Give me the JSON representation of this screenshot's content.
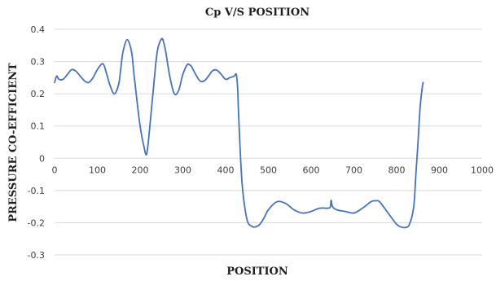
{
  "chart_data": {
    "type": "line",
    "title": "Cp V/S POSITION",
    "xlabel": "POSITION",
    "ylabel": "PRESSURE CO-EFFICIENT",
    "xlim": [
      0,
      1000
    ],
    "ylim": [
      -0.3,
      0.4
    ],
    "xticks": [
      "0",
      "100",
      "200",
      "300",
      "400",
      "500",
      "600",
      "700",
      "800",
      "900",
      "1000"
    ],
    "yticks": [
      "-0.3",
      "-0.2",
      "-0.1",
      "0",
      "0.1",
      "0.2",
      "0.3",
      "0.4"
    ],
    "grid": true,
    "color": "#4472c4",
    "series": [
      {
        "x": [
          0,
          5,
          10,
          20,
          30,
          40,
          50,
          60,
          70,
          80,
          90,
          100,
          110,
          115,
          120,
          130,
          140,
          150,
          155,
          160,
          170,
          180,
          185,
          190,
          200,
          210,
          215,
          220,
          230,
          240,
          250,
          255,
          260,
          270,
          280,
          290,
          300,
          310,
          315,
          320,
          330,
          340,
          350,
          360,
          370,
          380,
          390,
          400,
          410,
          420,
          425,
          428,
          430,
          435,
          440,
          450,
          460,
          470,
          480,
          490,
          500,
          520,
          540,
          560,
          580,
          600,
          620,
          640,
          645,
          647,
          650,
          660,
          680,
          700,
          720,
          740,
          750,
          760,
          780,
          800,
          810,
          820,
          830,
          840,
          845,
          850,
          855,
          860,
          862
        ],
        "y": [
          0.235,
          0.255,
          0.245,
          0.245,
          0.26,
          0.275,
          0.27,
          0.255,
          0.24,
          0.235,
          0.25,
          0.275,
          0.292,
          0.29,
          0.27,
          0.225,
          0.2,
          0.23,
          0.28,
          0.33,
          0.368,
          0.33,
          0.27,
          0.21,
          0.1,
          0.03,
          0.012,
          0.06,
          0.2,
          0.33,
          0.37,
          0.36,
          0.33,
          0.25,
          0.2,
          0.21,
          0.26,
          0.29,
          0.29,
          0.285,
          0.26,
          0.24,
          0.24,
          0.255,
          0.272,
          0.273,
          0.26,
          0.245,
          0.25,
          0.255,
          0.26,
          0.22,
          0.15,
          0.0,
          -0.1,
          -0.19,
          -0.21,
          -0.213,
          -0.205,
          -0.185,
          -0.16,
          -0.135,
          -0.14,
          -0.16,
          -0.17,
          -0.165,
          -0.155,
          -0.155,
          -0.15,
          -0.13,
          -0.15,
          -0.16,
          -0.165,
          -0.17,
          -0.155,
          -0.135,
          -0.132,
          -0.135,
          -0.17,
          -0.205,
          -0.213,
          -0.215,
          -0.205,
          -0.15,
          -0.05,
          0.05,
          0.16,
          0.22,
          0.235
        ]
      }
    ]
  }
}
